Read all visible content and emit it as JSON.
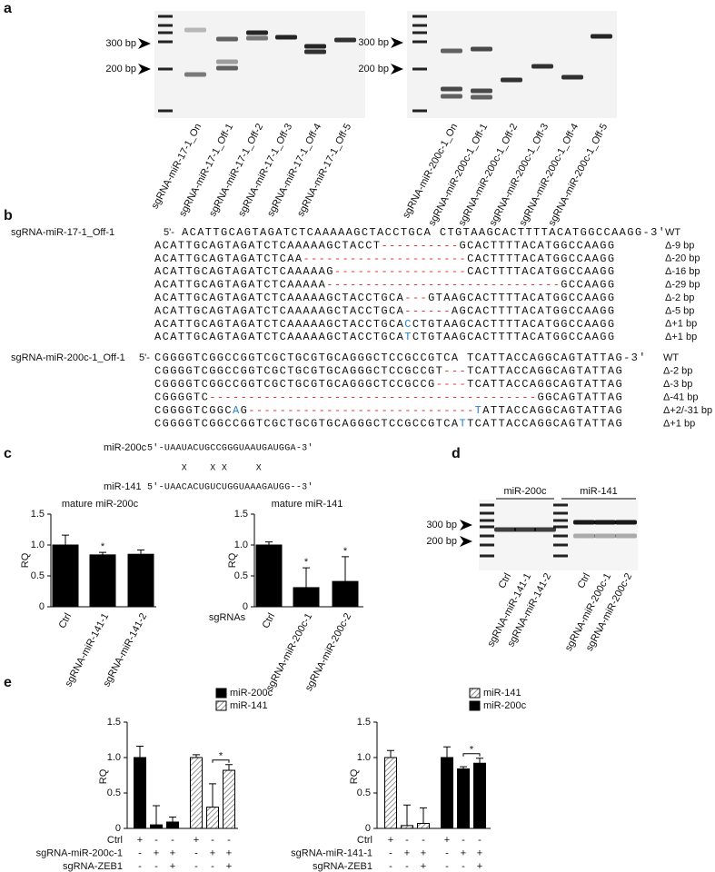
{
  "panel_labels": [
    "a",
    "b",
    "c",
    "d",
    "e"
  ],
  "gels": [
    {
      "markers": [
        "300 bp",
        "200 bp"
      ],
      "lanes": [
        "sgRNA-miR-17-1_On",
        "sgRNA-miR-17-1_Off-1",
        "sgRNA-miR-17-1_Off-2",
        "sgRNA-miR-17-1_Off-3",
        "sgRNA-miR-17-1_Off-4",
        "sgRNA-miR-17-1_Off-5"
      ]
    },
    {
      "markers": [
        "300 bp",
        "200 bp"
      ],
      "lanes": [
        "sgRNA-miR-200c-1_On",
        "sgRNA-miR-200c-1_Off-1",
        "sgRNA-miR-200c-1_Off-2",
        "sgRNA-miR-200c-1_Off-3",
        "sgRNA-miR-200c-1_Off-4",
        "sgRNA-miR-200c-1_Off-5"
      ]
    },
    {
      "markers": [
        "300 bp",
        "200 bp"
      ],
      "groups": [
        {
          "label": "miR-200c",
          "lanes": [
            "Ctrl",
            "sgRNA-miR-141-1",
            "sgRNA-miR-141-2"
          ]
        },
        {
          "label": "miR-141",
          "lanes": [
            "Ctrl",
            "sgRNA-miR-200c-1",
            "sgRNA-miR-200c-2"
          ]
        }
      ]
    }
  ],
  "sequences": [
    {
      "name": "sgRNA-miR-17-1_Off-1",
      "prefix": "5'-",
      "wild_type": "ACATTGCAGTAGATCTCAAAAAGCTACCTGCA CTGTAAGCACTTTTACATGGCCAAGG",
      "suffix": "-3'",
      "wild_type_label": "WT",
      "rows": [
        {
          "segments": [
            {
              "text": "ACATTGCAGTAGATCTCAAAAAGCTACCT"
            },
            {
              "text": "----------",
              "color": "#e0302a"
            },
            {
              "text": "GCACTTTTACATGGCCAAGG"
            }
          ],
          "label": "Δ-9 bp",
          "label_color": "#e0302a"
        },
        {
          "segments": [
            {
              "text": "ACATTGCAGTAGATCTCAA"
            },
            {
              "text": "---------------------",
              "color": "#e0302a"
            },
            {
              "text": "CACTTTTACATGGCCAAGG"
            }
          ],
          "label": "Δ-20 bp",
          "label_color": "#e0302a"
        },
        {
          "segments": [
            {
              "text": "ACATTGCAGTAGATCTCAAAAAG"
            },
            {
              "text": "-----------------",
              "color": "#e0302a"
            },
            {
              "text": "CACTTTTACATGGCCAAGG"
            }
          ],
          "label": "Δ-16 bp",
          "label_color": "#e0302a"
        },
        {
          "segments": [
            {
              "text": "ACATTGCAGTAGATCTCAAAAA"
            },
            {
              "text": "------------------------------",
              "color": "#e0302a"
            },
            {
              "text": "GCCAAGG"
            }
          ],
          "label": "Δ-29 bp",
          "label_color": "#e0302a"
        },
        {
          "segments": [
            {
              "text": "ACATTGCAGTAGATCTCAAAAAGCTACCTGCA"
            },
            {
              "text": "---",
              "color": "#e0302a"
            },
            {
              "text": "GTAAGCACTTTTACATGGCCAAGG"
            }
          ],
          "label": "Δ-2 bp",
          "label_color": "#e0302a"
        },
        {
          "segments": [
            {
              "text": "ACATTGCAGTAGATCTCAAAAAGCTACCTGCA"
            },
            {
              "text": "------",
              "color": "#e0302a"
            },
            {
              "text": "AGCACTTTTACATGGCCAAGG"
            }
          ],
          "label": "Δ-5 bp",
          "label_color": "#e0302a"
        },
        {
          "segments": [
            {
              "text": "ACATTGCAGTAGATCTCAAAAAGCTACCTGCA"
            },
            {
              "text": "C",
              "color": "#2a7fc8"
            },
            {
              "text": "CTGTAAGCACTTTTACATGGCCAAGG"
            }
          ],
          "label": "Δ+1 bp",
          "label_color": "#2a7fc8"
        },
        {
          "segments": [
            {
              "text": "ACATTGCAGTAGATCTCAAAAAGCTACCTGCA"
            },
            {
              "text": "T",
              "color": "#2a7fc8"
            },
            {
              "text": "CTGTAAGCACTTTTACATGGCCAAGG"
            }
          ],
          "label": "Δ+1 bp",
          "label_color": "#2a7fc8"
        }
      ]
    },
    {
      "name": "sgRNA-miR-200c-1_Off-1",
      "prefix": "5'-",
      "wild_type": "CGGGGTCGGCCGGTCGCTGCGTGCAGGGCTCCGCCGTCA TCATTACCAGGCAGTATTAG",
      "suffix": "-3'",
      "wild_type_label": "WT",
      "rows": [
        {
          "segments": [
            {
              "text": "CGGGGTCGGCCGGTCGCTGCGTGCAGGGCTCCGCCGT"
            },
            {
              "text": "---",
              "color": "#e0302a"
            },
            {
              "text": "TCATTACCAGGCAGTATTAG"
            }
          ],
          "label": "Δ-2 bp",
          "label_color": "#e0302a"
        },
        {
          "segments": [
            {
              "text": "CGGGGTCGGCCGGTCGCTGCGTGCAGGGCTCCGCCG"
            },
            {
              "text": "----",
              "color": "#e0302a"
            },
            {
              "text": "TCATTACCAGGCAGTATTAG"
            }
          ],
          "label": "Δ-3 bp",
          "label_color": "#e0302a"
        },
        {
          "segments": [
            {
              "text": "CGGGGTC"
            },
            {
              "text": "------------------------------------------",
              "color": "#e0302a"
            },
            {
              "text": "GGCAGTATTAG"
            }
          ],
          "label": "Δ-41 bp",
          "label_color": "#e0302a"
        },
        {
          "segments": [
            {
              "text": "CGGGGTCGGC"
            },
            {
              "text": "A",
              "color": "#2a7fc8"
            },
            {
              "text": "G"
            },
            {
              "text": "-----------------------------",
              "color": "#e0302a"
            },
            {
              "text": "T",
              "color": "#2a7fc8"
            },
            {
              "text": "ATTACCAGGCAGTATTAG"
            }
          ],
          "label": "Δ+2/-31 bp",
          "label_color": "#2a7fc8"
        },
        {
          "segments": [
            {
              "text": "CGGGGTCGGCCGGTCGCTGCGTGCAGGGCTCCGCCGTCA"
            },
            {
              "text": "T",
              "color": "#2a7fc8"
            },
            {
              "text": "TCATTACCAGGCAGTATTAG"
            }
          ],
          "label": "Δ+1 bp",
          "label_color": "#2a7fc8"
        }
      ]
    }
  ],
  "alignment": {
    "rows": [
      {
        "name": "miR-200c",
        "sequence": "5'-UAAUACUGCCGGGUAAUGAUGGA-3'"
      },
      {
        "name": "miR-141",
        "sequence": "5'-UAACACUGUCUGGUAAAGAUGG--3'"
      }
    ],
    "mismatches": "      X    X X     X"
  },
  "chart_data": [
    {
      "type": "bar",
      "title": "mature miR-200c",
      "ylabel": "RQ",
      "categories": [
        "Ctrl",
        "sgRNA-miR-141-1",
        "sgRNA-miR-141-2"
      ],
      "values": [
        1.0,
        0.84,
        0.85
      ],
      "errors": [
        0.16,
        0.04,
        0.07
      ],
      "significance": [
        null,
        "*",
        null
      ],
      "color": "#000000",
      "ylim": [
        0,
        1.5
      ],
      "yticks": [
        0,
        0.5,
        {
          "value": 1,
          "label": "1.0"
        },
        1.5
      ]
    },
    {
      "type": "bar",
      "title": "mature miR-141",
      "ylabel": "RQ",
      "xlabel": "sgRNAs",
      "categories": [
        "Ctrl",
        "sgRNA-miR-200c-1",
        "sgRNA-miR-200c-2"
      ],
      "values": [
        1.0,
        0.31,
        0.41
      ],
      "errors": [
        0.05,
        0.32,
        0.4
      ],
      "significance": [
        null,
        "*",
        "*"
      ],
      "color": "#000000",
      "ylim": [
        0,
        1.5
      ],
      "yticks": [
        0,
        0.5,
        {
          "value": 1,
          "label": "1.0"
        },
        1.5
      ]
    },
    {
      "type": "bar",
      "ylabel": "RQ",
      "categories": [
        null,
        null,
        null,
        null,
        null,
        null
      ],
      "legend": "upper right",
      "series": [
        {
          "name": "miR-200c",
          "color": "#000000",
          "values": [
            1.0,
            0.05,
            0.09,
            null,
            null,
            null
          ],
          "errors": [
            0.16,
            0.27,
            0.07,
            null,
            null,
            null
          ]
        },
        {
          "name": "miR-141",
          "color": "#777777",
          "hatch": true,
          "values": [
            null,
            null,
            null,
            1.0,
            0.3,
            0.82
          ],
          "errors": [
            null,
            null,
            null,
            0.04,
            0.33,
            0.08
          ]
        }
      ],
      "significance": [
        null,
        null,
        null,
        null,
        null,
        "*"
      ],
      "conditions": [
        {
          "name": "Ctrl",
          "values": [
            "+",
            "-",
            "-",
            "+",
            "-",
            "-"
          ]
        },
        {
          "name": "sgRNA-miR-200c-1",
          "values": [
            "-",
            "+",
            "+",
            "-",
            "+",
            "+"
          ]
        },
        {
          "name": "sgRNA-ZEB1",
          "values": [
            "-",
            "-",
            "+",
            "-",
            "-",
            "+"
          ]
        }
      ],
      "ylim": [
        0,
        1.5
      ],
      "yticks": [
        0,
        0.5,
        {
          "value": 1,
          "label": "1.0"
        },
        1.5
      ]
    },
    {
      "type": "bar",
      "ylabel": "RQ",
      "categories": [
        null,
        null,
        null,
        null,
        null,
        null
      ],
      "legend": "upper right",
      "series": [
        {
          "name": "miR-141",
          "color": "#777777",
          "hatch": true,
          "values": [
            1.0,
            0.04,
            0.07,
            null,
            null,
            null
          ],
          "errors": [
            0.1,
            0.29,
            0.22,
            null,
            null,
            null
          ]
        },
        {
          "name": "miR-200c",
          "color": "#000000",
          "values": [
            null,
            null,
            null,
            1.0,
            0.84,
            0.92
          ],
          "errors": [
            null,
            null,
            null,
            0.15,
            0.03,
            0.07
          ]
        }
      ],
      "significance": [
        null,
        null,
        null,
        null,
        null,
        "*"
      ],
      "conditions": [
        {
          "name": "Ctrl",
          "values": [
            "+",
            "-",
            "-",
            "+",
            "-",
            "-"
          ]
        },
        {
          "name": "sgRNA-miR-141-1",
          "values": [
            "-",
            "+",
            "+",
            "-",
            "+",
            "+"
          ]
        },
        {
          "name": "sgRNA-ZEB1",
          "values": [
            "-",
            "-",
            "+",
            "-",
            "-",
            "+"
          ]
        }
      ],
      "ylim": [
        0,
        1.5
      ],
      "yticks": [
        0,
        0.5,
        {
          "value": 1,
          "label": "1.0"
        },
        1.5
      ]
    }
  ]
}
